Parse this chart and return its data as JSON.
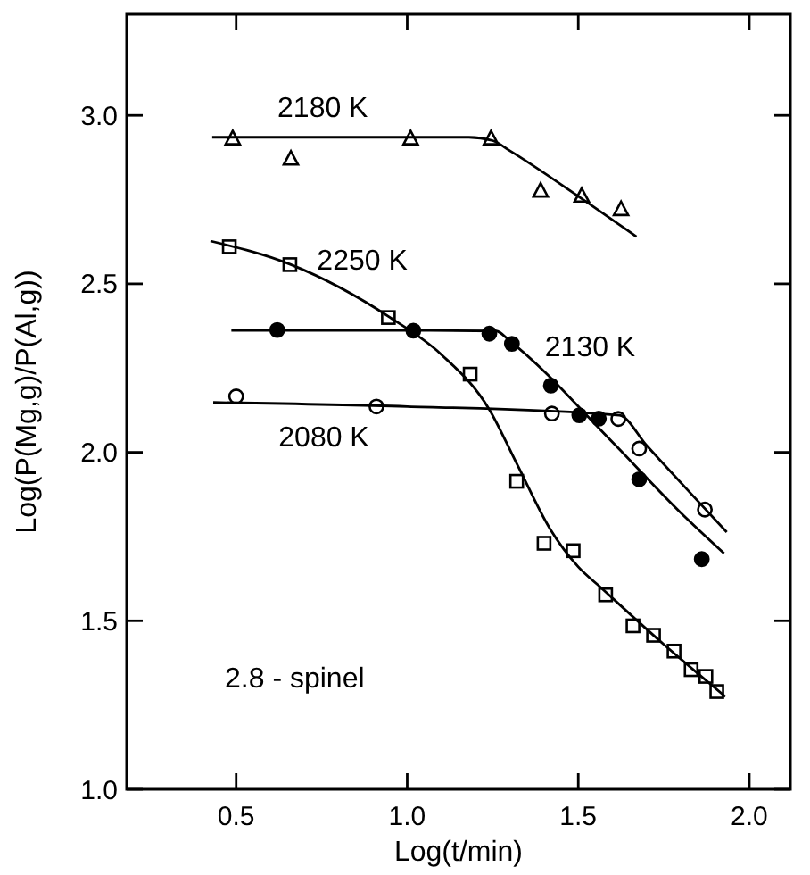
{
  "chart_data": {
    "type": "scatter",
    "xlabel": "Log(t/min)",
    "ylabel": "Log(P(Mg,g)/P(Al,g))",
    "xlim": [
      0.18,
      2.12
    ],
    "ylim": [
      1.0,
      3.3
    ],
    "xticks": [
      0.5,
      {
        "value": 1,
        "label": "1.0"
      },
      1.5,
      {
        "value": 2,
        "label": "2.0"
      }
    ],
    "yticks": [
      {
        "value": 1,
        "label": "1.0"
      },
      1.5,
      {
        "value": 2,
        "label": "2.0"
      },
      2.5,
      {
        "value": 3,
        "label": "3.0"
      }
    ],
    "grid": false,
    "series": [
      {
        "marker": "triangle",
        "color": "#000000",
        "x": [
          0.49,
          0.66,
          1.01,
          1.245,
          1.39,
          1.51,
          1.625
        ],
        "values": [
          2.93,
          2.87,
          2.93,
          2.93,
          2.775,
          2.76,
          2.72
        ]
      },
      {
        "marker": "square",
        "color": "#000000",
        "x": [
          0.48,
          0.657,
          0.945,
          1.184,
          1.32,
          1.4,
          1.485,
          1.58,
          1.66,
          1.72,
          1.78,
          1.83,
          1.873,
          1.905
        ],
        "values": [
          2.61,
          2.557,
          2.4,
          2.232,
          1.914,
          1.73,
          1.708,
          1.577,
          1.485,
          1.457,
          1.41,
          1.355,
          1.335,
          1.29
        ]
      },
      {
        "marker": "circle",
        "color": "#000000",
        "x": [
          0.62,
          1.018,
          1.24,
          1.306,
          1.42,
          1.503,
          1.56,
          1.678,
          1.861
        ],
        "values": [
          2.363,
          2.361,
          2.352,
          2.322,
          2.198,
          2.11,
          2.1,
          1.92,
          1.683
        ]
      },
      {
        "marker": "circle",
        "color": "#000000",
        "x": [
          0.5,
          0.91,
          1.423,
          1.617,
          1.678,
          1.87
        ],
        "values": [
          2.166,
          2.136,
          2.115,
          2.099,
          2.011,
          1.83
        ]
      },
      {
        "type": "line",
        "name": "2180 K",
        "marker": "none",
        "color": "#000000",
        "x": [
          0.43,
          0.8,
          1.18,
          1.25,
          1.3,
          1.5,
          1.67
        ],
        "values": [
          2.935,
          2.935,
          2.935,
          2.925,
          2.895,
          2.76,
          2.64
        ]
      },
      {
        "type": "line",
        "name": "2250 K",
        "marker": "none",
        "color": "#000000",
        "x": [
          0.425,
          0.66,
          0.95,
          1.1,
          1.24,
          1.32,
          1.418,
          1.5,
          1.57,
          1.75,
          1.93
        ],
        "values": [
          2.627,
          2.557,
          2.4,
          2.29,
          2.127,
          1.967,
          1.772,
          1.66,
          1.595,
          1.43,
          1.275
        ]
      },
      {
        "type": "line",
        "name": "2130 K",
        "marker": "none",
        "color": "#000000",
        "x": [
          0.486,
          1.0,
          1.26,
          1.3,
          1.6,
          1.8,
          1.926
        ],
        "values": [
          2.362,
          2.362,
          2.36,
          2.33,
          2.03,
          1.82,
          1.7
        ]
      },
      {
        "type": "line",
        "name": "2080 K",
        "marker": "none",
        "color": "#000000",
        "x": [
          0.433,
          1.0,
          1.62,
          1.7,
          1.85,
          1.934
        ],
        "values": [
          2.148,
          2.136,
          2.11,
          2.02,
          1.855,
          1.763
        ]
      }
    ],
    "annotations": [
      "2.8 - spinel"
    ]
  }
}
